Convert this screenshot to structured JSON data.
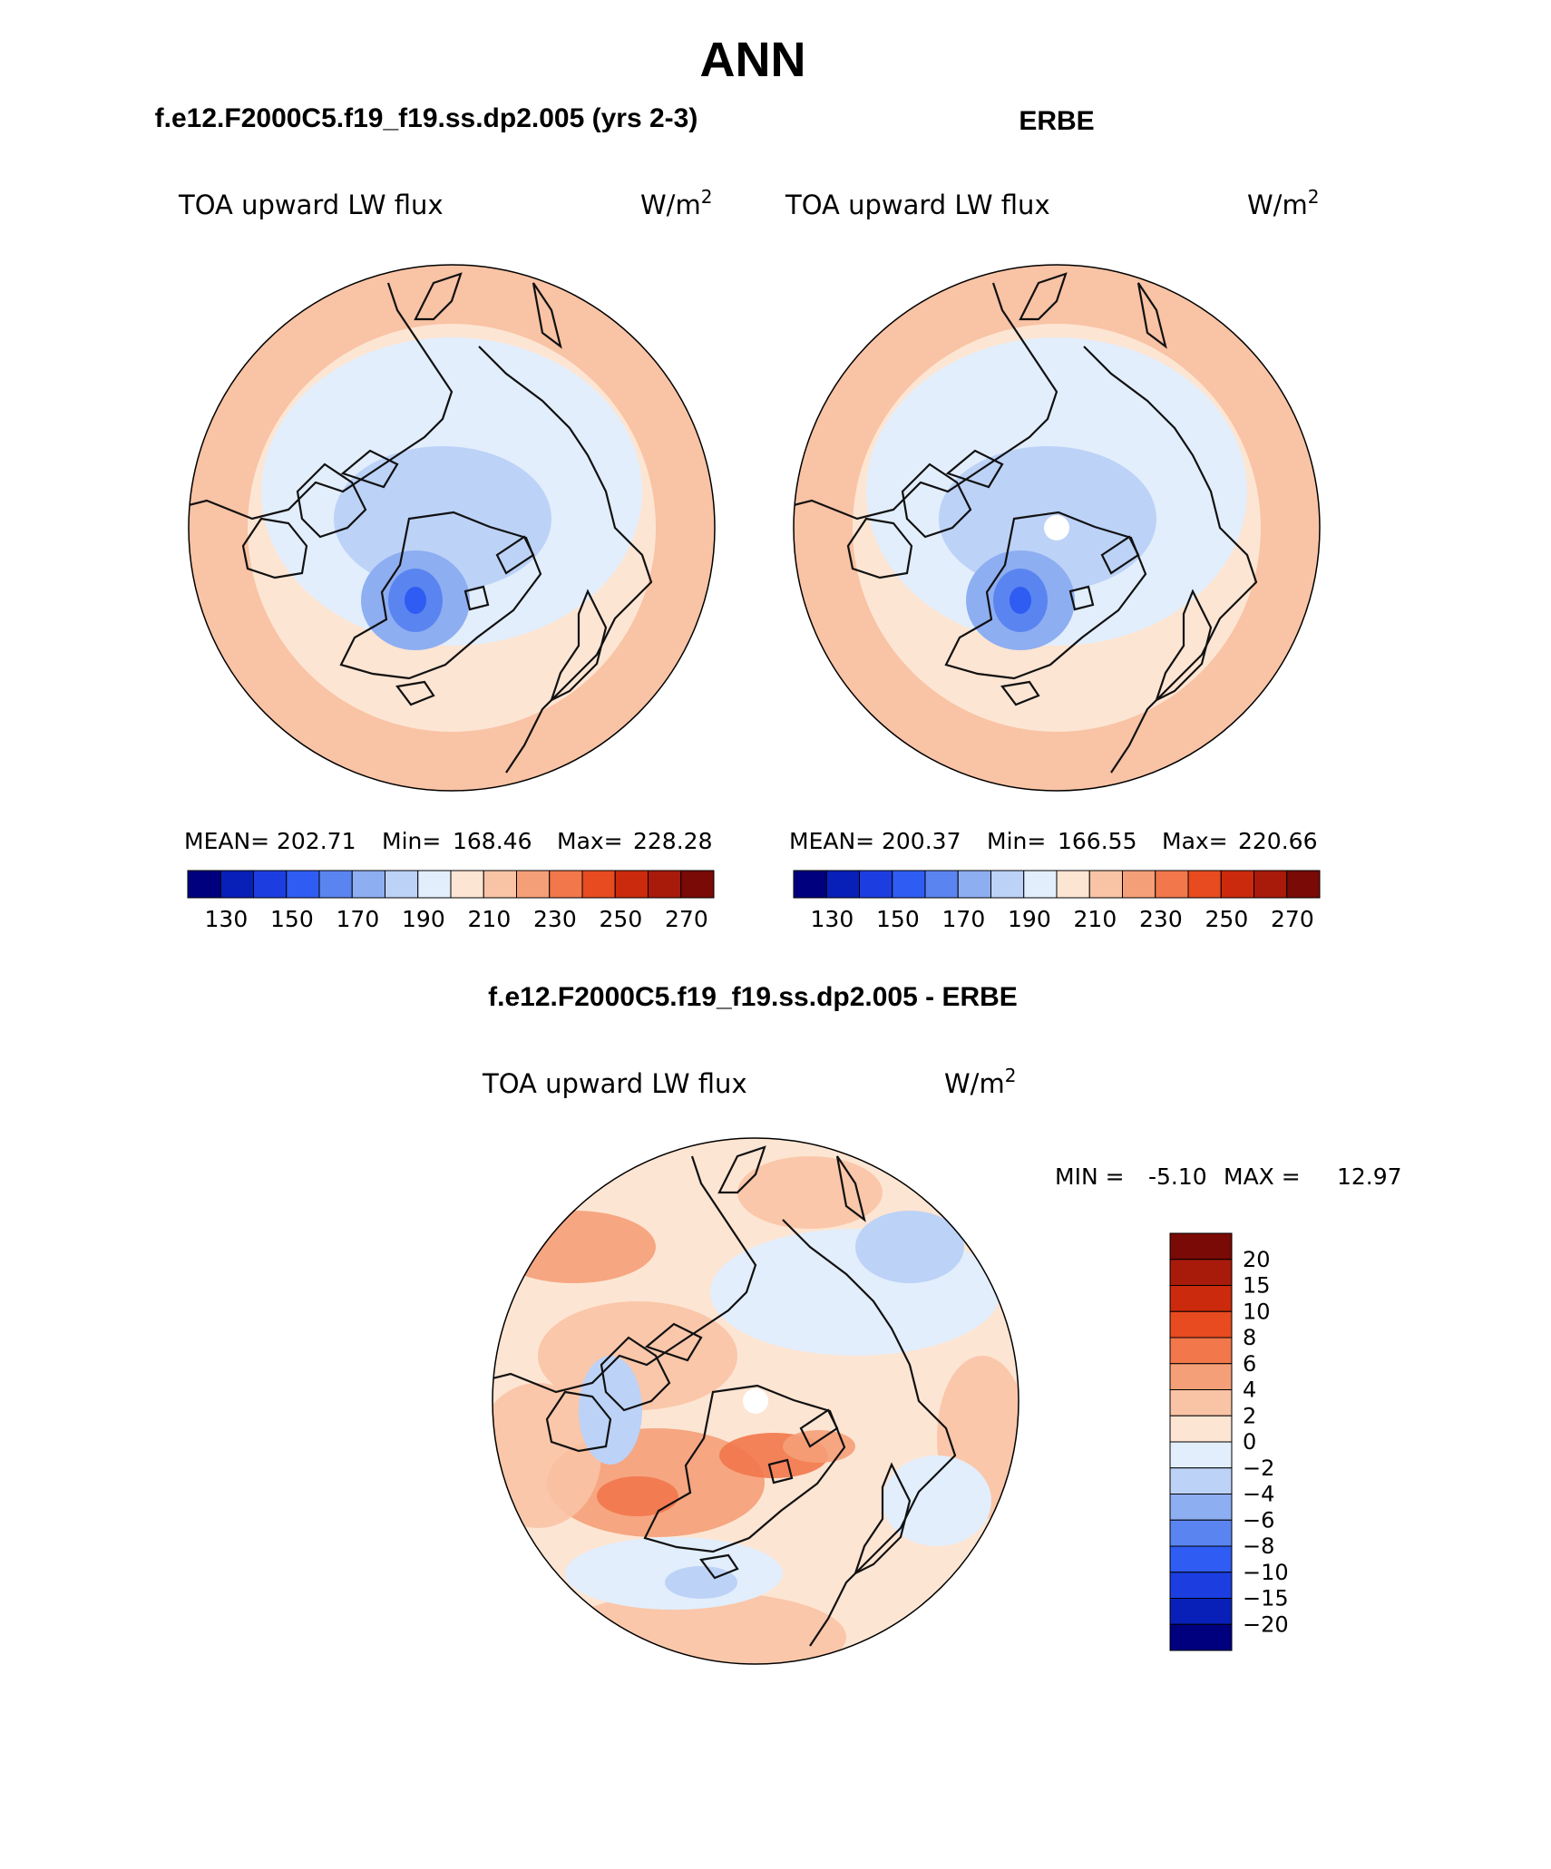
{
  "page_title": "ANN",
  "panels": [
    {
      "case": "f.e12.F2000C5.f19_f19.ss.dp2.005 (yrs 2-3)",
      "variable": "TOA upward LW flux",
      "units_base": "W/m",
      "units_exp": "2",
      "stats": {
        "mean_label": "MEAN=",
        "mean": "202.71",
        "min_label": "Min=",
        "min": "168.46",
        "max_label": "Max=",
        "max": "228.28"
      },
      "has_pole_hole": false
    },
    {
      "case": "ERBE",
      "variable": "TOA upward LW flux",
      "units_base": "W/m",
      "units_exp": "2",
      "stats": {
        "mean_label": "MEAN=",
        "mean": "200.37",
        "min_label": "Min=",
        "min": "166.55",
        "max_label": "Max=",
        "max": "220.66"
      },
      "has_pole_hole": true
    }
  ],
  "abs_colorbar": {
    "tick_labels": [
      "130",
      "150",
      "170",
      "190",
      "210",
      "230",
      "250",
      "270"
    ],
    "colors": [
      "#00007f",
      "#0820b8",
      "#1c3ee0",
      "#2f5cf2",
      "#5a85f0",
      "#8eaef2",
      "#bcd2f7",
      "#e2eefc",
      "#fde5d3",
      "#f9c3a5",
      "#f59f78",
      "#f2774b",
      "#e84b1f",
      "#cc2a0c",
      "#a81a0a",
      "#7a0a05"
    ]
  },
  "diff_panel": {
    "title": "f.e12.F2000C5.f19_f19.ss.dp2.005 - ERBE",
    "variable": "TOA upward LW flux",
    "units_base": "W/m",
    "units_exp": "2",
    "min_label": "MIN =",
    "min": "-5.10",
    "max_label": "MAX =",
    "max": "12.97"
  },
  "diff_colorbar": {
    "tick_labels": [
      "20",
      "15",
      "10",
      "8",
      "6",
      "4",
      "2",
      "0",
      "−2",
      "−4",
      "−6",
      "−8",
      "−10",
      "−15",
      "−20"
    ],
    "colors_top_to_bottom": [
      "#7a0a05",
      "#a81a0a",
      "#cc2a0c",
      "#e84b1f",
      "#f2774b",
      "#f59f78",
      "#f9c3a5",
      "#fde5d3",
      "#e2eefc",
      "#bcd2f7",
      "#8eaef2",
      "#5a85f0",
      "#2f5cf2",
      "#1c3ee0",
      "#0820b8",
      "#00007f"
    ]
  },
  "colors": {
    "coast": "#111111",
    "warm1": "#fde5d3",
    "warm2": "#f9c3a5",
    "warm3": "#f59f78",
    "warm4": "#f2774b",
    "cool1": "#e2eefc",
    "cool2": "#bcd2f7",
    "cool3": "#8eaef2",
    "cool4": "#5a85f0",
    "cool5": "#2f5cf2"
  }
}
